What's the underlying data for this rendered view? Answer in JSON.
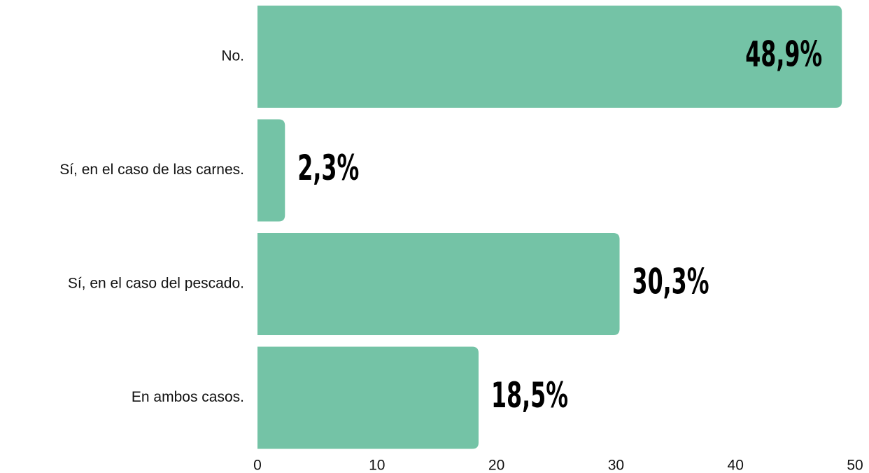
{
  "chart_data": {
    "type": "bar",
    "orientation": "horizontal",
    "categories": [
      "No.",
      "Sí, en el caso de las carnes.",
      "Sí, en el caso del pescado.",
      "En ambos casos."
    ],
    "values": [
      48.9,
      2.3,
      30.3,
      18.5
    ],
    "value_labels": [
      "48,9%",
      "2,3%",
      "30,3%",
      "18,5%"
    ],
    "xlim": [
      0,
      50
    ],
    "x_ticks": [
      0,
      10,
      20,
      30,
      40,
      50
    ],
    "x_tick_labels": [
      "0",
      "10",
      "20",
      "30",
      "40",
      "50"
    ],
    "bar_color": "#74C3A6",
    "grid": false,
    "legend": false
  }
}
